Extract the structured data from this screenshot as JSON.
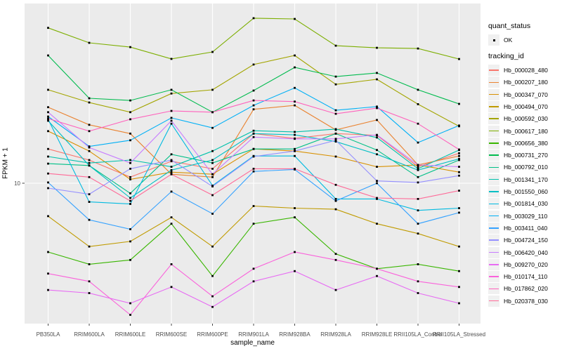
{
  "theme": {
    "panel_bg": "#EBEBEB",
    "grid_color": "#FFFFFF",
    "tick_color": "#333333",
    "tick_label_color": "#4D4D4D",
    "point_color": "#000000",
    "legend_key_bg": "#F0F0F0"
  },
  "legend": {
    "quant_title": "quant_status",
    "quant_item": "OK",
    "tracking_title": "tracking_id"
  },
  "chart_data": {
    "type": "line",
    "title": "",
    "xlabel": "sample_name",
    "ylabel": "FPKM + 1",
    "y_scale": "log10",
    "y_ticks": [
      "10"
    ],
    "ylim_approx": [
      1.8,
      95
    ],
    "grid": "major",
    "legend_position": "right",
    "quant_status": {
      "title": "quant_status",
      "items": [
        "OK"
      ]
    },
    "tracking_title": "tracking_id",
    "categories": [
      "PB350LA",
      "RRIM600LA",
      "RRIM600LE",
      "RRIM600SE",
      "RRIM600PE",
      "RRIM901LA",
      "RRIM928BA",
      "RRIM928LA",
      "RRIM928LE",
      "RRII105LA_Control",
      "RRII105LA_Stressed"
    ],
    "series": [
      {
        "name": "Hb_000028_480",
        "color": "#F8766D",
        "values": [
          15.4,
          13.4,
          10.8,
          13.2,
          12.0,
          18.7,
          17.6,
          18.7,
          18.3,
          12.3,
          14.6
        ]
      },
      {
        "name": "Hb_000207_180",
        "color": "#EA8331",
        "values": [
          26.1,
          20.9,
          18.7,
          11.2,
          10.8,
          25.4,
          26.7,
          19.6,
          22.2,
          12.6,
          14.1
        ]
      },
      {
        "name": "Hb_000347_070",
        "color": "#D89000",
        "values": [
          19.3,
          15.0,
          10.5,
          11.5,
          11.2,
          15.4,
          15.0,
          14.0,
          12.3,
          12.6,
          11.5
        ]
      },
      {
        "name": "Hb_000494_070",
        "color": "#C09B00",
        "values": [
          6.6,
          4.5,
          4.8,
          6.5,
          4.5,
          7.5,
          7.3,
          7.2,
          6.0,
          5.3,
          4.5
        ]
      },
      {
        "name": "Hb_000592_030",
        "color": "#A3A500",
        "values": [
          32.5,
          27.7,
          24.5,
          31.0,
          32.5,
          44.7,
          50.1,
          34.8,
          37.1,
          27.1,
          20.5
        ]
      },
      {
        "name": "Hb_000617_180",
        "color": "#7CAE00",
        "values": [
          71.0,
          58.8,
          55.7,
          48.0,
          52.4,
          80.2,
          79.4,
          56.7,
          55.2,
          54.7,
          47.9
        ]
      },
      {
        "name": "Hb_000656_380",
        "color": "#39B600",
        "values": [
          4.2,
          3.6,
          3.8,
          6.0,
          3.1,
          6.0,
          6.5,
          4.1,
          3.4,
          3.6,
          3.3
        ]
      },
      {
        "name": "Hb_000731_270",
        "color": "#00BB4E",
        "values": [
          50.1,
          29.2,
          28.4,
          32.5,
          24.5,
          32.2,
          43.1,
          38.4,
          40.2,
          32.5,
          27.2
        ]
      },
      {
        "name": "Hb_000792_010",
        "color": "#00C087",
        "values": [
          12.8,
          12.5,
          8.8,
          14.4,
          12.9,
          15.4,
          15.4,
          18.7,
          15.2,
          10.8,
          13.4
        ]
      },
      {
        "name": "Hb_001341_170",
        "color": "#00C1AB",
        "values": [
          14.0,
          12.9,
          13.4,
          12.3,
          15.0,
          19.4,
          19.1,
          19.8,
          17.8,
          12.0,
          15.2
        ]
      },
      {
        "name": "Hb_001550_060",
        "color": "#00BFC4",
        "values": [
          22.0,
          12.5,
          8.3,
          11.8,
          13.4,
          18.7,
          18.4,
          16.9,
          14.4,
          11.8,
          13.6
        ]
      },
      {
        "name": "Hb_001814_030",
        "color": "#00BAE0",
        "values": [
          22.4,
          7.9,
          7.7,
          21.2,
          9.7,
          14.1,
          14.1,
          8.2,
          8.2,
          7.1,
          7.3
        ]
      },
      {
        "name": "Hb_003029_110",
        "color": "#00B0F6",
        "values": [
          23.2,
          15.9,
          17.2,
          22.8,
          20.1,
          26.7,
          33.3,
          25.1,
          26.3,
          16.7,
          20.7
        ]
      },
      {
        "name": "Hb_003411_040",
        "color": "#35A2FF",
        "values": [
          10.1,
          6.3,
          5.6,
          9.0,
          6.8,
          11.6,
          11.9,
          8.0,
          10.0,
          6.0,
          6.9
        ]
      },
      {
        "name": "Hb_004724_150",
        "color": "#9590FF",
        "values": [
          9.4,
          8.7,
          12.0,
          13.4,
          9.6,
          14.0,
          15.0,
          17.2,
          10.3,
          10.1,
          11.0
        ]
      },
      {
        "name": "Hb_006420_040",
        "color": "#C77CFF",
        "values": [
          24.5,
          15.7,
          12.9,
          22.0,
          11.2,
          17.9,
          17.5,
          17.5,
          18.4,
          12.6,
          12.3
        ]
      },
      {
        "name": "Hb_009270_020",
        "color": "#E76BF3",
        "values": [
          2.6,
          2.5,
          2.2,
          2.7,
          2.1,
          2.9,
          3.3,
          2.6,
          3.1,
          2.5,
          2.2
        ]
      },
      {
        "name": "Hb_010174_110",
        "color": "#FA62DB",
        "values": [
          3.2,
          2.9,
          1.9,
          3.6,
          2.4,
          3.4,
          4.2,
          3.8,
          3.4,
          2.9,
          2.7
        ]
      },
      {
        "name": "Hb_017862_020",
        "color": "#FF62BC",
        "values": [
          22.6,
          19.3,
          22.4,
          24.9,
          24.5,
          28.4,
          28.0,
          24.0,
          25.8,
          21.2,
          15.3
        ]
      },
      {
        "name": "Hb_020378_030",
        "color": "#FF6A98",
        "values": [
          11.3,
          10.8,
          8.0,
          11.2,
          8.6,
          12.0,
          12.0,
          9.8,
          8.3,
          8.2,
          9.1
        ]
      }
    ]
  }
}
